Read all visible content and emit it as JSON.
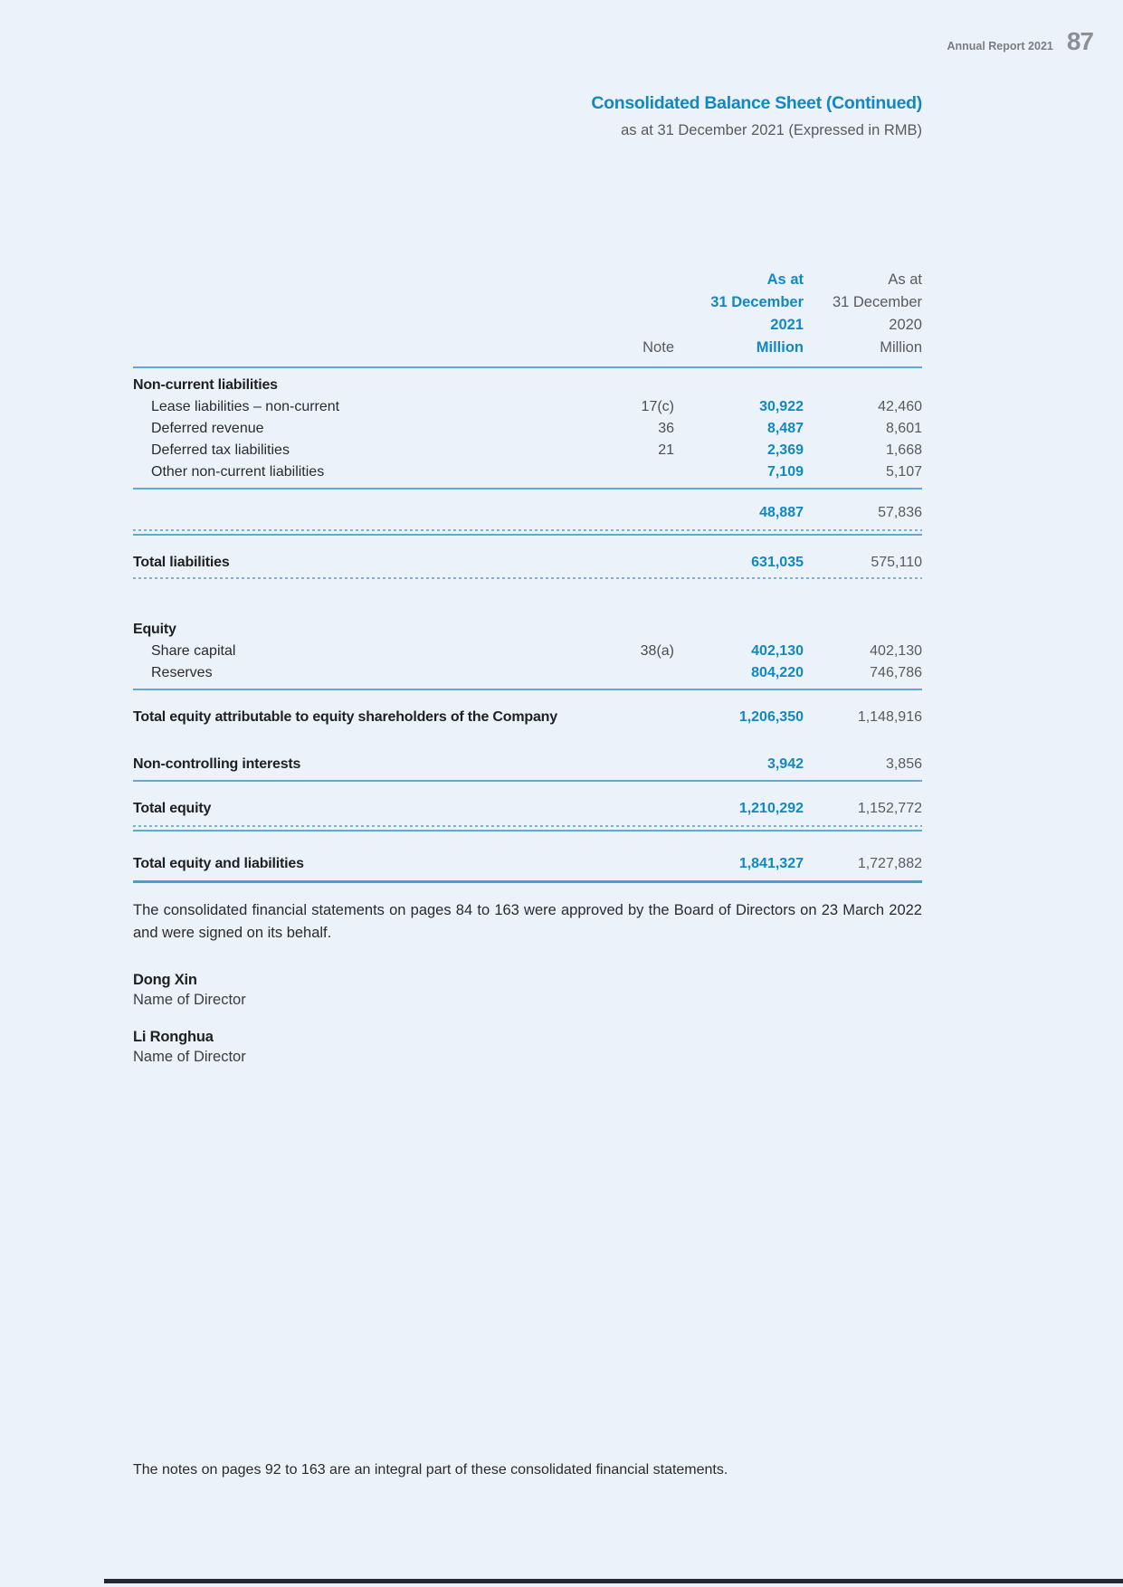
{
  "page_header": {
    "report_label": "Annual Report 2021",
    "page_number": "87"
  },
  "doc_header": {
    "title": "Consolidated Balance Sheet (Continued)",
    "subtitle": "as at 31 December 2021 (Expressed in RMB)"
  },
  "table": {
    "col_headers": {
      "note": "Note",
      "y2021": {
        "line1": "As at",
        "line2": "31 December",
        "line3": "2021",
        "line4": "Million"
      },
      "y2020": {
        "line1": "As at",
        "line2": "31 December",
        "line3": "2020",
        "line4": "Million"
      }
    },
    "rows": [
      {
        "label": "Non-current liabilities",
        "note": "",
        "v2021": "",
        "v2020": ""
      },
      {
        "label": "Lease liabilities – non-current",
        "note": "17(c)",
        "v2021": "30,922",
        "v2020": "42,460"
      },
      {
        "label": "Deferred revenue",
        "note": "36",
        "v2021": "8,487",
        "v2020": "8,601"
      },
      {
        "label": "Deferred tax liabilities",
        "note": "21",
        "v2021": "2,369",
        "v2020": "1,668"
      },
      {
        "label": "Other non-current liabilities",
        "note": "",
        "v2021": "7,109",
        "v2020": "5,107"
      },
      {
        "label": "",
        "note": "",
        "v2021": "48,887",
        "v2020": "57,836"
      },
      {
        "label": "Total liabilities",
        "note": "",
        "v2021": "631,035",
        "v2020": "575,110"
      },
      {
        "label": "Equity",
        "note": "",
        "v2021": "",
        "v2020": ""
      },
      {
        "label": "Share capital",
        "note": "38(a)",
        "v2021": "402,130",
        "v2020": "402,130"
      },
      {
        "label": "Reserves",
        "note": "",
        "v2021": "804,220",
        "v2020": "746,786"
      },
      {
        "label": "Total equity attributable to equity shareholders of the Company",
        "note": "",
        "v2021": "1,206,350",
        "v2020": "1,148,916"
      },
      {
        "label": "Non-controlling interests",
        "note": "",
        "v2021": "3,942",
        "v2020": "3,856"
      },
      {
        "label": "Total equity",
        "note": "",
        "v2021": "1,210,292",
        "v2020": "1,152,772"
      },
      {
        "label": "Total equity and liabilities",
        "note": "",
        "v2021": "1,841,327",
        "v2020": "1,727,882"
      }
    ]
  },
  "approval_paragraph": "The consolidated financial statements on pages 84 to 163 were approved by the Board of Directors on 23 March 2022 and were signed on its behalf.",
  "signatories": [
    {
      "name": "Dong Xin",
      "role": "Name of Director"
    },
    {
      "name": "Li Ronghua",
      "role": "Name of Director"
    }
  ],
  "footer_note": "The notes on pages 92 to 163 are an integral part of these consolidated financial statements.",
  "colors": {
    "accent_blue": "#1188c4",
    "rule_blue": "#5fa9d2",
    "text_gray": "#595a5c",
    "page_background": "#ecf2f9"
  }
}
